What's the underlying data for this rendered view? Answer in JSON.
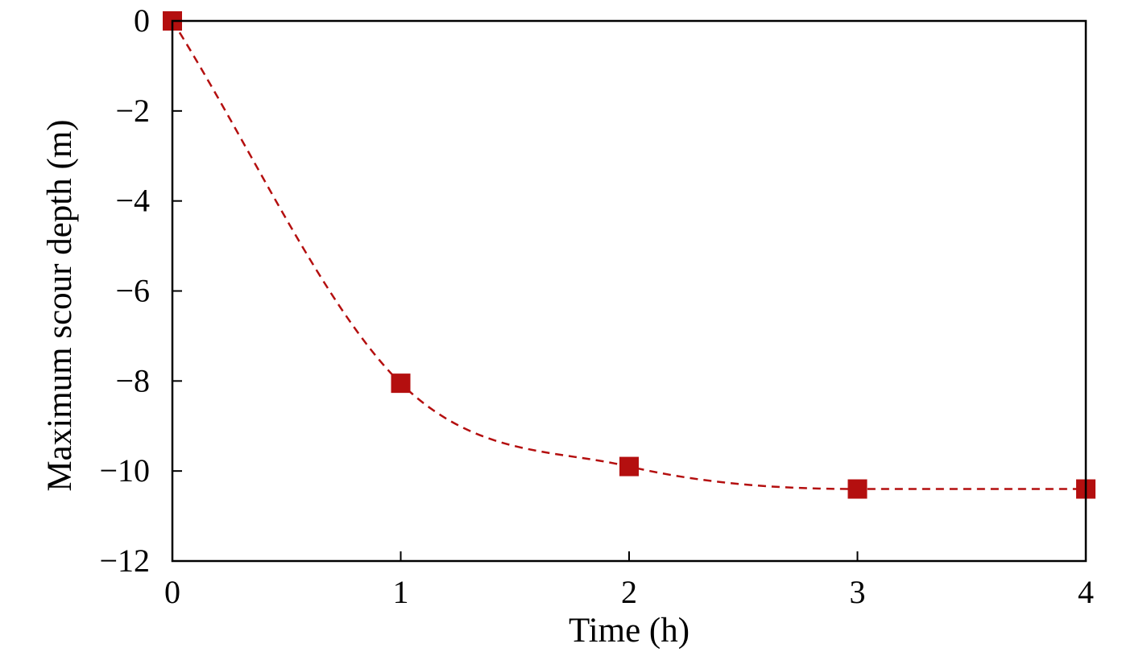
{
  "chart_data": {
    "type": "line",
    "title": "",
    "xlabel": "Time (h)",
    "ylabel": "Maximum scour depth (m)",
    "xlim": [
      0,
      4
    ],
    "ylim": [
      -12,
      0
    ],
    "xticks": [
      0,
      1,
      2,
      3,
      4
    ],
    "yticks": [
      0,
      -2,
      -4,
      -6,
      -8,
      -10,
      -12
    ],
    "xtick_labels": [
      "0",
      "1",
      "2",
      "3",
      "4"
    ],
    "ytick_labels": [
      "0",
      "−2",
      "−4",
      "−6",
      "−8",
      "−10",
      "−12"
    ],
    "grid": false,
    "legend": "none",
    "series": [
      {
        "x": [
          0,
          1,
          2,
          3,
          4
        ],
        "y": [
          0,
          -8.05,
          -9.9,
          -10.4,
          -10.4
        ],
        "marker": "square",
        "line_style": "dashed smooth curve",
        "color": "#b40f0f"
      }
    ]
  }
}
